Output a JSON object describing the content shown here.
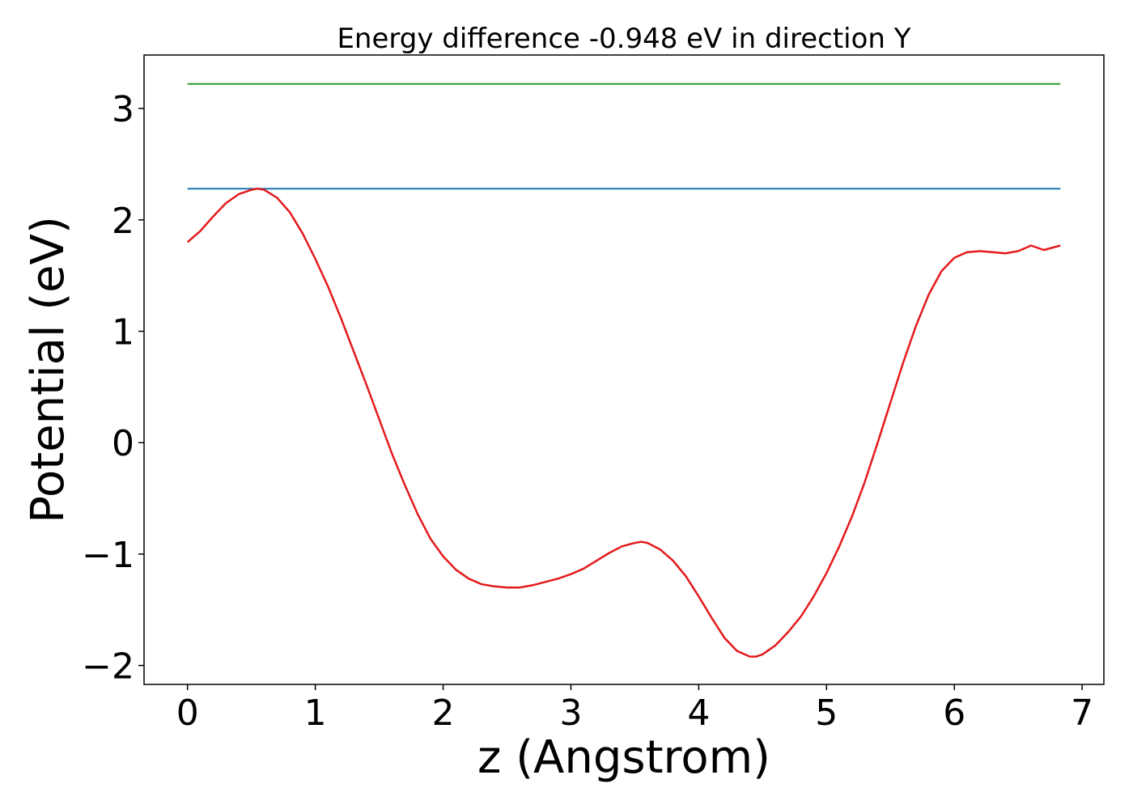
{
  "chart_data": {
    "type": "line",
    "title": "Energy difference -0.948 eV in direction Y",
    "xlabel": "z (Angstrom)",
    "ylabel": "Potential (eV)",
    "xlim": [
      -0.34,
      7.17
    ],
    "ylim": [
      -2.17,
      3.48
    ],
    "grid": false,
    "xticks": [
      0,
      1,
      2,
      3,
      4,
      5,
      6,
      7
    ],
    "yticks": [
      -2,
      -1,
      0,
      1,
      2,
      3
    ],
    "xtick_labels": [
      "0",
      "1",
      "2",
      "3",
      "4",
      "5",
      "6",
      "7"
    ],
    "ytick_labels": [
      "−2",
      "−1",
      "0",
      "1",
      "2",
      "3"
    ],
    "series": [
      {
        "color": "#1f77b4",
        "x": [
          0,
          6.83
        ],
        "y": [
          2.28,
          2.28
        ]
      },
      {
        "color": "#2ca02c",
        "x": [
          0,
          6.83
        ],
        "y": [
          3.22,
          3.22
        ]
      },
      {
        "color": "#e31a1c",
        "x": [
          0,
          0.1,
          0.2,
          0.3,
          0.4,
          0.5,
          0.55,
          0.6,
          0.7,
          0.8,
          0.9,
          1.0,
          1.1,
          1.2,
          1.3,
          1.4,
          1.5,
          1.6,
          1.7,
          1.8,
          1.9,
          2.0,
          2.1,
          2.2,
          2.3,
          2.4,
          2.5,
          2.6,
          2.7,
          2.8,
          2.9,
          3.0,
          3.1,
          3.2,
          3.3,
          3.4,
          3.5,
          3.55,
          3.6,
          3.7,
          3.8,
          3.9,
          4.0,
          4.1,
          4.2,
          4.3,
          4.4,
          4.45,
          4.5,
          4.6,
          4.7,
          4.8,
          4.9,
          5.0,
          5.1,
          5.2,
          5.3,
          5.4,
          5.5,
          5.6,
          5.7,
          5.8,
          5.9,
          6.0,
          6.1,
          6.2,
          6.3,
          6.4,
          6.5,
          6.6,
          6.7,
          6.83
        ],
        "y": [
          1.8,
          1.9,
          2.03,
          2.15,
          2.23,
          2.27,
          2.28,
          2.27,
          2.2,
          2.07,
          1.88,
          1.65,
          1.4,
          1.12,
          0.82,
          0.52,
          0.21,
          -0.1,
          -0.38,
          -0.64,
          -0.86,
          -1.02,
          -1.14,
          -1.22,
          -1.27,
          -1.29,
          -1.3,
          -1.3,
          -1.28,
          -1.25,
          -1.22,
          -1.18,
          -1.13,
          -1.06,
          -0.99,
          -0.93,
          -0.9,
          -0.89,
          -0.9,
          -0.96,
          -1.06,
          -1.2,
          -1.38,
          -1.57,
          -1.75,
          -1.87,
          -1.92,
          -1.92,
          -1.9,
          -1.82,
          -1.7,
          -1.56,
          -1.38,
          -1.17,
          -0.93,
          -0.66,
          -0.35,
          0.0,
          0.36,
          0.72,
          1.05,
          1.33,
          1.54,
          1.66,
          1.71,
          1.72,
          1.71,
          1.7,
          1.72,
          1.77,
          1.73,
          1.77
        ]
      }
    ]
  }
}
